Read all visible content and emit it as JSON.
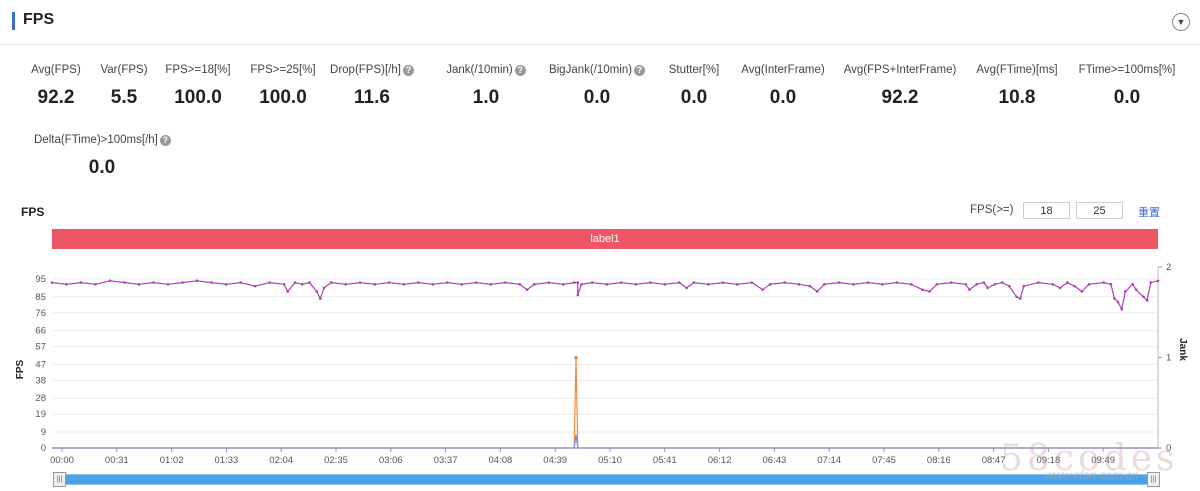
{
  "header": {
    "title": "FPS"
  },
  "metrics": [
    {
      "label": "Avg(FPS)",
      "value": "92.2",
      "help": false
    },
    {
      "label": "Var(FPS)",
      "value": "5.5",
      "help": false
    },
    {
      "label": "FPS>=18[%]",
      "value": "100.0",
      "help": false
    },
    {
      "label": "FPS>=25[%]",
      "value": "100.0",
      "help": false
    },
    {
      "label": "Drop(FPS)[/h]",
      "value": "11.6",
      "help": true
    },
    {
      "label": "Jank(/10min)",
      "value": "1.0",
      "help": true
    },
    {
      "label": "BigJank(/10min)",
      "value": "0.0",
      "help": true
    },
    {
      "label": "Stutter[%]",
      "value": "0.0",
      "help": false
    },
    {
      "label": "Avg(InterFrame)",
      "value": "0.0",
      "help": false
    },
    {
      "label": "Avg(FPS+InterFrame)",
      "value": "92.2",
      "help": false
    },
    {
      "label": "Avg(FTime)[ms]",
      "value": "10.8",
      "help": false
    },
    {
      "label": "FTime>=100ms[%]",
      "value": "0.0",
      "help": false
    },
    {
      "label": "Delta(FTime)>100ms[/h]",
      "value": "0.0",
      "help": true
    }
  ],
  "chart_title": "FPS",
  "fps_filter": {
    "label": "FPS(>=)",
    "value1": "18",
    "value2": "25",
    "reset_label": "重置"
  },
  "label_bar": "label1",
  "watermark": {
    "main": "58codes",
    "sub": "www.cfan.com.cn"
  },
  "chart_data": {
    "type": "line",
    "xlabel": "",
    "ylabel": "FPS",
    "y2label": "Jank",
    "x_ticks": [
      "00:00",
      "00:31",
      "01:02",
      "01:33",
      "02:04",
      "02:35",
      "03:06",
      "03:37",
      "04:08",
      "04:39",
      "05:10",
      "05:41",
      "06:12",
      "06:43",
      "07:14",
      "07:45",
      "08:16",
      "08:47",
      "09:18",
      "09:49"
    ],
    "y_ticks": [
      0,
      9,
      19,
      28,
      38,
      47,
      57,
      66,
      76,
      85,
      95
    ],
    "y_range": [
      0,
      95
    ],
    "y2_ticks": [
      0,
      1,
      2
    ],
    "y2_range": [
      0,
      2
    ],
    "x_range_seconds": [
      0,
      610
    ],
    "colors": {
      "fps": "#b03fb3",
      "jank": "#ef8a3d",
      "bigjank": "#7d8ad6",
      "grid": "#ececec"
    },
    "series": [
      {
        "name": "FPS",
        "unit": "fps",
        "points": [
          [
            0,
            93
          ],
          [
            8,
            92
          ],
          [
            16,
            93
          ],
          [
            24,
            92
          ],
          [
            32,
            94
          ],
          [
            40,
            93
          ],
          [
            48,
            92
          ],
          [
            56,
            93
          ],
          [
            64,
            92
          ],
          [
            72,
            93
          ],
          [
            80,
            94
          ],
          [
            88,
            93
          ],
          [
            96,
            92
          ],
          [
            104,
            93
          ],
          [
            112,
            91
          ],
          [
            120,
            93
          ],
          [
            128,
            92
          ],
          [
            130,
            88
          ],
          [
            134,
            93
          ],
          [
            138,
            92
          ],
          [
            142,
            93
          ],
          [
            146,
            88
          ],
          [
            148,
            84
          ],
          [
            150,
            90
          ],
          [
            154,
            93
          ],
          [
            162,
            92
          ],
          [
            170,
            93
          ],
          [
            178,
            92
          ],
          [
            186,
            93
          ],
          [
            194,
            92
          ],
          [
            202,
            93
          ],
          [
            210,
            92
          ],
          [
            218,
            93
          ],
          [
            226,
            92
          ],
          [
            234,
            93
          ],
          [
            242,
            92
          ],
          [
            250,
            93
          ],
          [
            258,
            92
          ],
          [
            262,
            89
          ],
          [
            266,
            92
          ],
          [
            274,
            93
          ],
          [
            282,
            92
          ],
          [
            290,
            93
          ],
          [
            288,
            93
          ],
          [
            290,
            86
          ],
          [
            292,
            92
          ],
          [
            298,
            93
          ],
          [
            306,
            92
          ],
          [
            314,
            93
          ],
          [
            322,
            92
          ],
          [
            330,
            93
          ],
          [
            338,
            92
          ],
          [
            346,
            93
          ],
          [
            350,
            90
          ],
          [
            354,
            93
          ],
          [
            362,
            92
          ],
          [
            370,
            93
          ],
          [
            378,
            92
          ],
          [
            386,
            93
          ],
          [
            392,
            89
          ],
          [
            396,
            92
          ],
          [
            404,
            93
          ],
          [
            412,
            92
          ],
          [
            418,
            91
          ],
          [
            422,
            88
          ],
          [
            426,
            92
          ],
          [
            434,
            93
          ],
          [
            442,
            92
          ],
          [
            450,
            93
          ],
          [
            458,
            92
          ],
          [
            466,
            93
          ],
          [
            474,
            92
          ],
          [
            480,
            89
          ],
          [
            484,
            88
          ],
          [
            488,
            92
          ],
          [
            496,
            93
          ],
          [
            504,
            92
          ],
          [
            506,
            89
          ],
          [
            510,
            92
          ],
          [
            514,
            93
          ],
          [
            516,
            90
          ],
          [
            520,
            92
          ],
          [
            524,
            93
          ],
          [
            528,
            91
          ],
          [
            532,
            85
          ],
          [
            534,
            84
          ],
          [
            536,
            91
          ],
          [
            544,
            93
          ],
          [
            552,
            92
          ],
          [
            556,
            90
          ],
          [
            560,
            93
          ],
          [
            564,
            91
          ],
          [
            568,
            88
          ],
          [
            572,
            92
          ],
          [
            580,
            93
          ],
          [
            584,
            92
          ],
          [
            586,
            84
          ],
          [
            588,
            82
          ],
          [
            590,
            78
          ],
          [
            592,
            88
          ],
          [
            596,
            92
          ],
          [
            598,
            89
          ],
          [
            602,
            85
          ],
          [
            604,
            83
          ],
          [
            606,
            93
          ],
          [
            610,
            94
          ]
        ]
      },
      {
        "name": "Jank",
        "unit": "count",
        "points": [
          [
            0,
            0
          ],
          [
            288,
            0
          ],
          [
            289,
            1
          ],
          [
            290,
            0
          ],
          [
            610,
            0
          ]
        ]
      },
      {
        "name": "BigJank",
        "unit": "count",
        "points": [
          [
            0,
            0
          ],
          [
            288,
            0
          ],
          [
            289,
            0.15
          ],
          [
            290,
            0
          ],
          [
            610,
            0
          ]
        ]
      }
    ]
  },
  "slider": {
    "start": 0,
    "end": 1
  }
}
